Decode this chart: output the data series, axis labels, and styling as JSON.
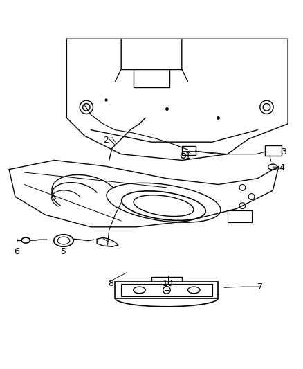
{
  "title": "",
  "bg_color": "#ffffff",
  "line_color": "#000000",
  "line_width": 1.0,
  "fig_width": 4.38,
  "fig_height": 5.33,
  "dpi": 100,
  "label_fontsize": 9,
  "label_color": "#000000"
}
